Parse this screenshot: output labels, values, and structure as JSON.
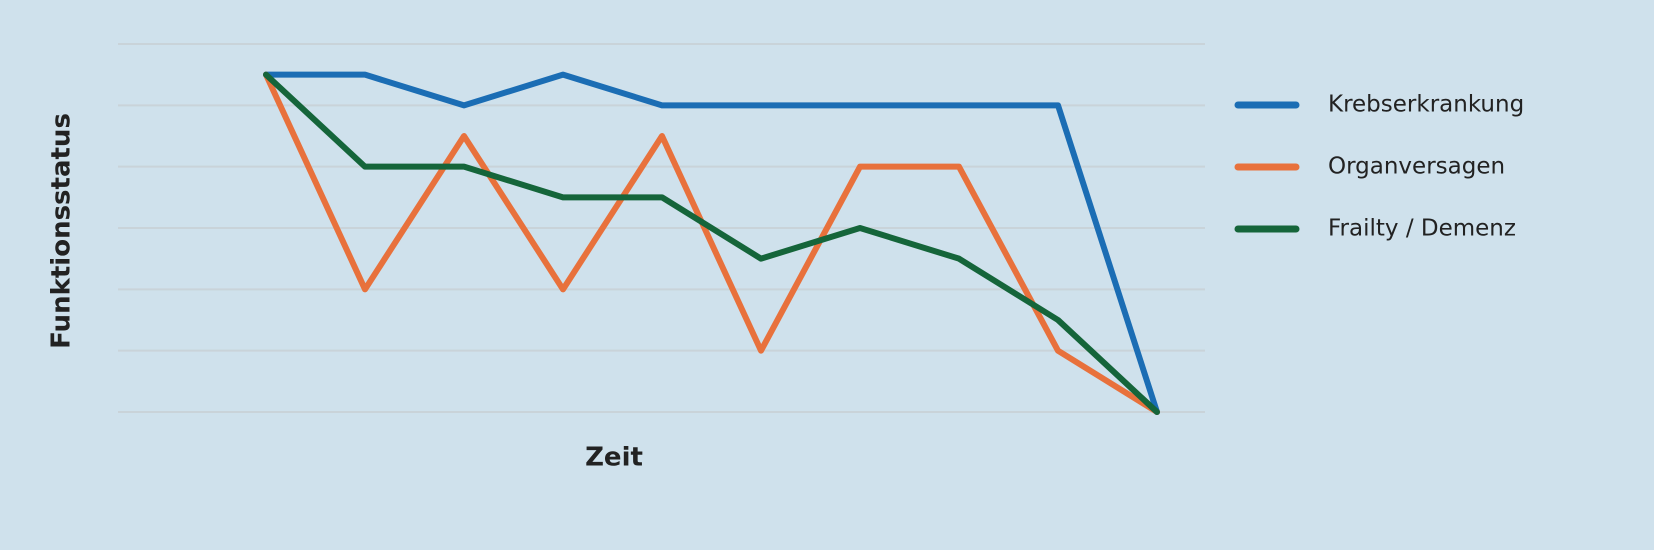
{
  "chart_data": {
    "type": "line",
    "x_label": "Zeit",
    "y_label": "Funktionsstatus",
    "categories": [
      null,
      null,
      null,
      null,
      null,
      null,
      null,
      null,
      null,
      null
    ],
    "series": [
      {
        "name": "Krebserkrankung",
        "color": "#1b6db4",
        "values": [
          5.5,
          5.5,
          5,
          5.5,
          5,
          5,
          5,
          5,
          5,
          0
        ]
      },
      {
        "name": "Organversagen",
        "color": "#e8713c",
        "values": [
          5.5,
          2,
          4.5,
          2,
          4.5,
          1,
          4,
          4,
          1,
          0
        ]
      },
      {
        "name": "Frailty / Demenz",
        "color": "#15653a",
        "values": [
          5.5,
          4,
          4,
          3.5,
          3.5,
          2.5,
          3,
          2.5,
          1.5,
          0
        ]
      }
    ],
    "ylim": [
      0,
      6
    ],
    "yticks": [
      0,
      1,
      2,
      3,
      4,
      5,
      6
    ],
    "tick_labels": false,
    "grid": true,
    "legend": "right"
  }
}
